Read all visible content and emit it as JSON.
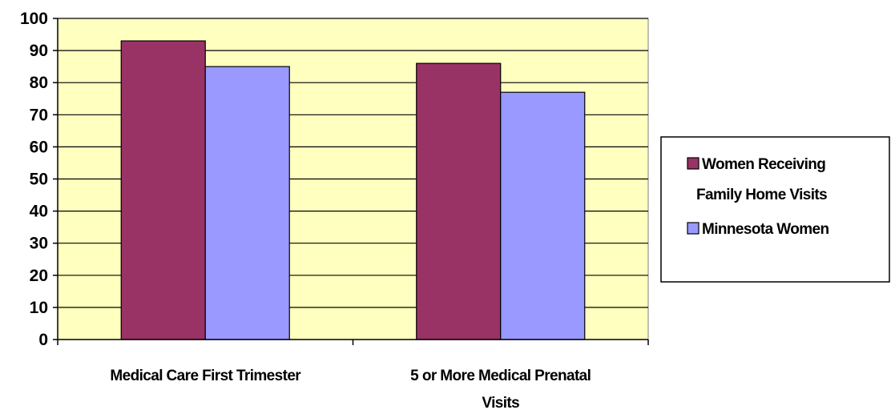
{
  "chart_data": {
    "type": "bar",
    "categories": [
      [
        "Medical Care First Trimester"
      ],
      [
        "5 or More Medical Prenatal",
        "Visits"
      ]
    ],
    "series": [
      {
        "name": [
          "Women Receiving",
          "Family Home Visits"
        ],
        "values": [
          93,
          86
        ],
        "color": "#993366"
      },
      {
        "name": [
          "Minnesota Women"
        ],
        "values": [
          85,
          77
        ],
        "color": "#9999ff"
      }
    ],
    "ylim": [
      0,
      100
    ],
    "yticks": [
      0,
      10,
      20,
      30,
      40,
      50,
      60,
      70,
      80,
      90,
      100
    ],
    "grid": true,
    "plot_background": "#ffffc0",
    "legend_position": "right"
  }
}
